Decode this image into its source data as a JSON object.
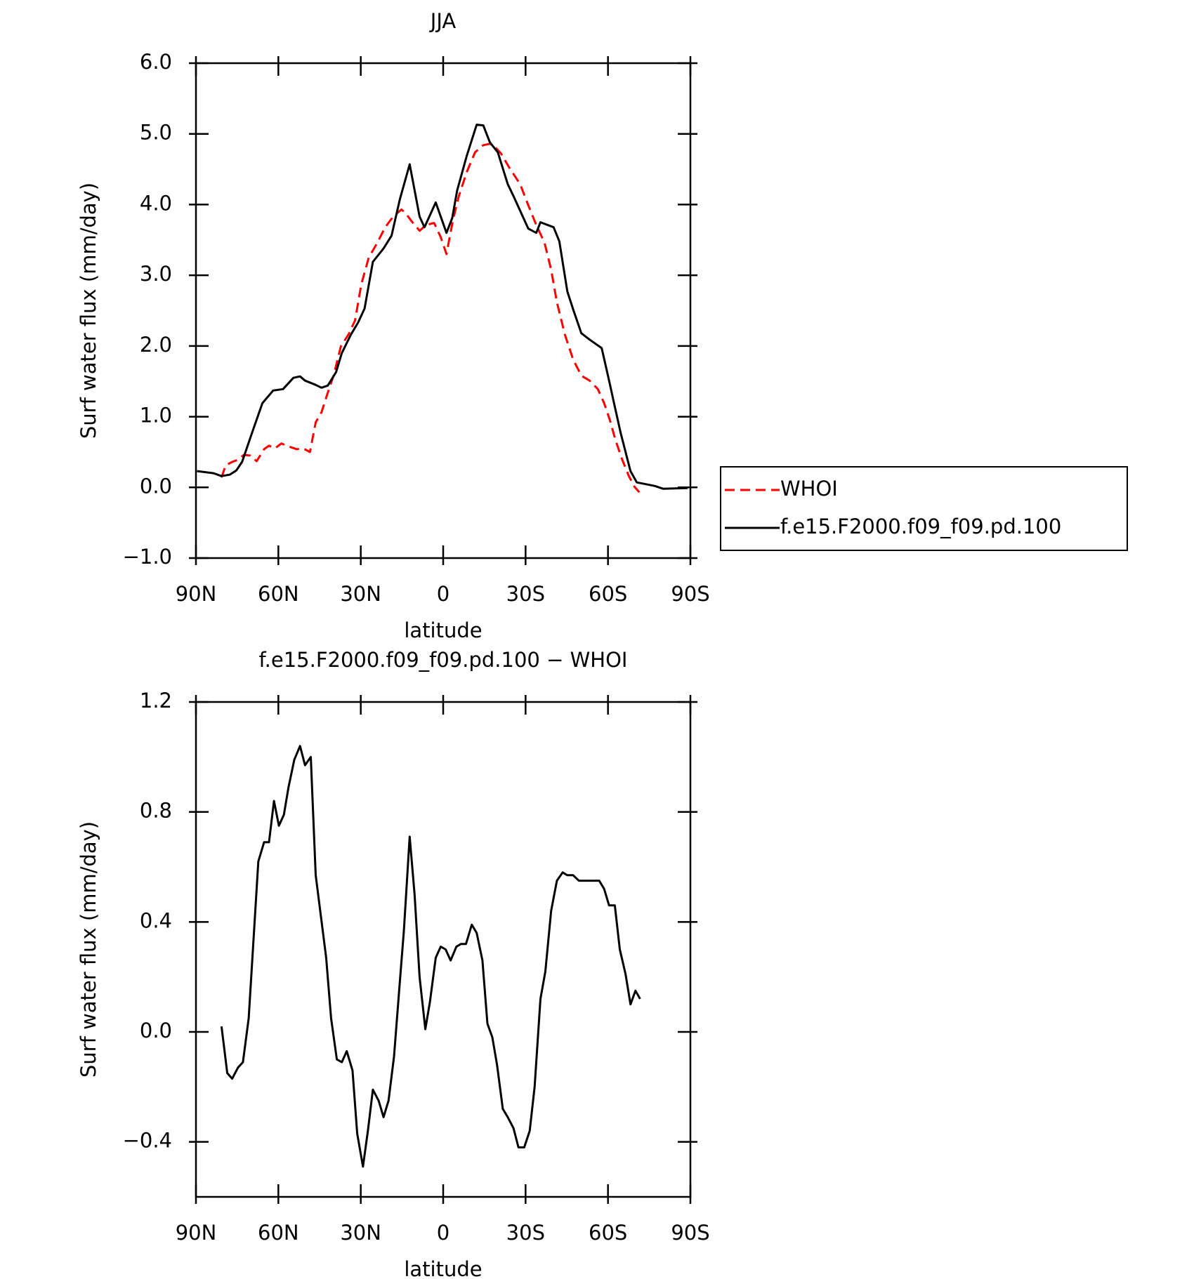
{
  "chart_data": [
    {
      "type": "line",
      "title": "JJA",
      "xlabel": "latitude",
      "ylabel": "Surf water flux (mm/day)",
      "xlim": [
        90,
        -90
      ],
      "xticks": [
        {
          "value": 90,
          "label": "90N"
        },
        {
          "value": 60,
          "label": "60N"
        },
        {
          "value": 30,
          "label": "30N"
        },
        0,
        {
          "value": -30,
          "label": "30S"
        },
        {
          "value": -60,
          "label": "60S"
        },
        {
          "value": -90,
          "label": "90S"
        }
      ],
      "ylim": [
        -1,
        6
      ],
      "yticks": [
        {
          "value": -1,
          "label": "−1.0"
        },
        {
          "value": 0,
          "label": "0.0"
        },
        {
          "value": 1,
          "label": "1.0"
        },
        {
          "value": 2,
          "label": "2.0"
        },
        {
          "value": 3,
          "label": "3.0"
        },
        {
          "value": 4,
          "label": "4.0"
        },
        {
          "value": 5,
          "label": "5.0"
        },
        {
          "value": 6,
          "label": "6.0"
        }
      ],
      "legend": "right",
      "series": [
        {
          "name": "WHOI",
          "color": "#ff0000",
          "style": "dashed",
          "x": [
            80.7,
            79.2,
            76.8,
            74.7,
            72.6,
            70.2,
            67.9,
            65.2,
            63.4,
            61.3,
            58.9,
            56.3,
            53.3,
            50.9,
            48.5,
            46.4,
            44.3,
            42,
            39.9,
            37.2,
            34.5,
            32.1,
            29.8,
            27.1,
            24.1,
            21.1,
            18.2,
            15.2,
            13.7,
            11.6,
            8.6,
            6.3,
            3.3,
            0.9,
            -1.2,
            -3.6,
            -5.7,
            -8.6,
            -11.6,
            -14.6,
            -17,
            -19,
            -21.1,
            -24.1,
            -28,
            -31,
            -33.9,
            -36.9,
            -39.3,
            -41.4,
            -44.3,
            -47.3,
            -50.3,
            -53.3,
            -56.3,
            -58.6,
            -60.7,
            -62.8,
            -65.2,
            -67.6,
            -69.6,
            -71.4
          ],
          "values": [
            0.14,
            0.31,
            0.36,
            0.39,
            0.46,
            0.45,
            0.37,
            0.54,
            0.59,
            0.55,
            0.62,
            0.58,
            0.54,
            0.55,
            0.5,
            0.92,
            1.06,
            1.34,
            1.58,
            2.0,
            2.16,
            2.36,
            2.87,
            3.25,
            3.45,
            3.68,
            3.83,
            3.93,
            3.88,
            3.77,
            3.63,
            3.71,
            3.74,
            3.54,
            3.3,
            3.79,
            4.12,
            4.46,
            4.74,
            4.84,
            4.86,
            4.81,
            4.72,
            4.52,
            4.29,
            3.99,
            3.71,
            3.46,
            3.08,
            2.62,
            2.16,
            1.81,
            1.58,
            1.51,
            1.39,
            1.19,
            0.95,
            0.66,
            0.39,
            0.16,
            0.01,
            -0.07
          ]
        },
        {
          "name": "f.e15.F2000.f09_f09.pd.100",
          "color": "#000000",
          "style": "solid",
          "x": [
            89.6,
            83.6,
            80.7,
            77.7,
            75.3,
            73.2,
            69.6,
            65.8,
            61.9,
            58.3,
            54.5,
            52.1,
            50.3,
            46.4,
            44.3,
            42,
            39,
            36.9,
            33.6,
            31,
            28.6,
            25.6,
            21.7,
            18.8,
            15.8,
            12.2,
            8.6,
            6.8,
            2.7,
            -1.2,
            -3.3,
            -5.1,
            -8.6,
            -12.2,
            -14.6,
            -17,
            -19.9,
            -23.5,
            -25.6,
            -31,
            -33.9,
            -35.4,
            -40.2,
            -42.3,
            -45.2,
            -47.3,
            -50.3,
            -53.3,
            -57.7,
            -60.1,
            -62.2,
            -64.6,
            -68.2,
            -70.5,
            -77.1,
            -80.1,
            -89
          ],
          "values": [
            0.23,
            0.2,
            0.16,
            0.18,
            0.24,
            0.36,
            0.77,
            1.19,
            1.37,
            1.39,
            1.55,
            1.57,
            1.51,
            1.45,
            1.41,
            1.44,
            1.63,
            1.9,
            2.16,
            2.33,
            2.53,
            3.19,
            3.38,
            3.56,
            4.07,
            4.57,
            3.83,
            3.68,
            4.03,
            3.6,
            3.81,
            4.2,
            4.69,
            5.13,
            5.12,
            4.88,
            4.74,
            4.29,
            4.12,
            3.66,
            3.6,
            3.75,
            3.68,
            3.48,
            2.77,
            2.52,
            2.18,
            2.09,
            1.97,
            1.56,
            1.19,
            0.77,
            0.23,
            0.07,
            0.02,
            -0.02,
            -0.01
          ]
        }
      ]
    },
    {
      "type": "line",
      "title": "f.e15.F2000.f09_f09.pd.100 − WHOI",
      "xlabel": "latitude",
      "ylabel": "Surf water flux (mm/day)",
      "xlim": [
        90,
        -90
      ],
      "xticks": [
        {
          "value": 90,
          "label": "90N"
        },
        {
          "value": 60,
          "label": "60N"
        },
        {
          "value": 30,
          "label": "30N"
        },
        0,
        {
          "value": -30,
          "label": "30S"
        },
        {
          "value": -60,
          "label": "60S"
        },
        {
          "value": -90,
          "label": "90S"
        }
      ],
      "ylim": [
        -0.6,
        1.2
      ],
      "yticks": [
        {
          "value": -0.4,
          "label": "−0.4"
        },
        {
          "value": 0,
          "label": "0.0"
        },
        0.4,
        0.8,
        1.2
      ],
      "color": "#000000",
      "x": [
        80.7,
        78.6,
        76.8,
        74.7,
        72.9,
        70.8,
        67.3,
        65.2,
        63.4,
        61.6,
        59.8,
        58,
        56.3,
        54.2,
        52.1,
        50.3,
        48.2,
        46.4,
        42.6,
        40.8,
        38.7,
        36.9,
        35.1,
        33,
        31.3,
        29.2,
        27.4,
        25.6,
        23.5,
        21.7,
        19.9,
        17.9,
        16.1,
        14.3,
        12.2,
        10.4,
        8.6,
        6.5,
        4.8,
        2.7,
        0.9,
        -0.9,
        -2.7,
        -4.8,
        -6.5,
        -8.3,
        -10.4,
        -12.2,
        -14.3,
        -16.1,
        -17.9,
        -19.6,
        -21.7,
        -23.5,
        -25.6,
        -27.4,
        -29.5,
        -31.5,
        -33.3,
        -35.4,
        -37.2,
        -39.3,
        -41.4,
        -43.5,
        -45.2,
        -47.3,
        -49.4,
        -51.2,
        -53,
        -55.1,
        -56.8,
        -58.6,
        -60.4,
        -62.5,
        -64.3,
        -66.4,
        -68.2,
        -70,
        -71.7
      ],
      "values": [
        0.02,
        -0.15,
        -0.17,
        -0.13,
        -0.11,
        0.05,
        0.62,
        0.69,
        0.69,
        0.84,
        0.75,
        0.79,
        0.89,
        0.99,
        1.04,
        0.97,
        1.0,
        0.57,
        0.27,
        0.05,
        -0.1,
        -0.11,
        -0.07,
        -0.14,
        -0.37,
        -0.49,
        -0.36,
        -0.21,
        -0.25,
        -0.31,
        -0.25,
        -0.09,
        0.14,
        0.37,
        0.71,
        0.5,
        0.2,
        0.01,
        0.11,
        0.27,
        0.31,
        0.3,
        0.26,
        0.31,
        0.32,
        0.32,
        0.39,
        0.36,
        0.26,
        0.03,
        -0.02,
        -0.12,
        -0.28,
        -0.31,
        -0.35,
        -0.42,
        -0.42,
        -0.36,
        -0.2,
        0.12,
        0.22,
        0.44,
        0.55,
        0.58,
        0.57,
        0.57,
        0.55,
        0.55,
        0.55,
        0.55,
        0.55,
        0.52,
        0.46,
        0.46,
        0.3,
        0.21,
        0.1,
        0.15,
        0.12
      ]
    }
  ]
}
